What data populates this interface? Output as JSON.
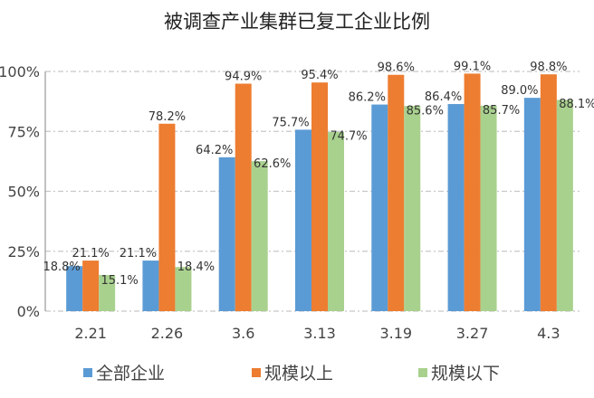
{
  "chart_data": {
    "type": "bar",
    "title": "被调查产业集群已复工企业比例",
    "categories": [
      "2.21",
      "2.26",
      "3.6",
      "3.13",
      "3.19",
      "3.27",
      "4.3"
    ],
    "series": [
      {
        "name": "全部企业",
        "color": "#5B9BD5",
        "values": [
          18.8,
          21.1,
          64.2,
          75.7,
          86.2,
          86.4,
          89.0
        ],
        "labels": [
          "18.8%",
          "21.1%",
          "64.2%",
          "75.7%",
          "86.2%",
          "86.4%",
          "89.0%"
        ]
      },
      {
        "name": "规模以上",
        "color": "#ED7D31",
        "values": [
          21.1,
          78.2,
          94.9,
          95.4,
          98.6,
          99.1,
          98.8
        ],
        "labels": [
          "21.1%",
          "78.2%",
          "94.9%",
          "95.4%",
          "98.6%",
          "99.1%",
          "98.8%"
        ]
      },
      {
        "name": "规模以下",
        "color": "#A9D18E",
        "values": [
          15.1,
          18.4,
          62.6,
          74.7,
          85.6,
          85.7,
          88.1
        ],
        "labels": [
          "15.1%",
          "18.4%",
          "62.6%",
          "74.7%",
          "85.6%",
          "85.7%",
          "88.1%"
        ]
      }
    ],
    "yticks": [
      "0%",
      "25%",
      "50%",
      "75%",
      "100%"
    ],
    "ylim": [
      0,
      100
    ],
    "grid": true,
    "legend_position": "bottom"
  }
}
